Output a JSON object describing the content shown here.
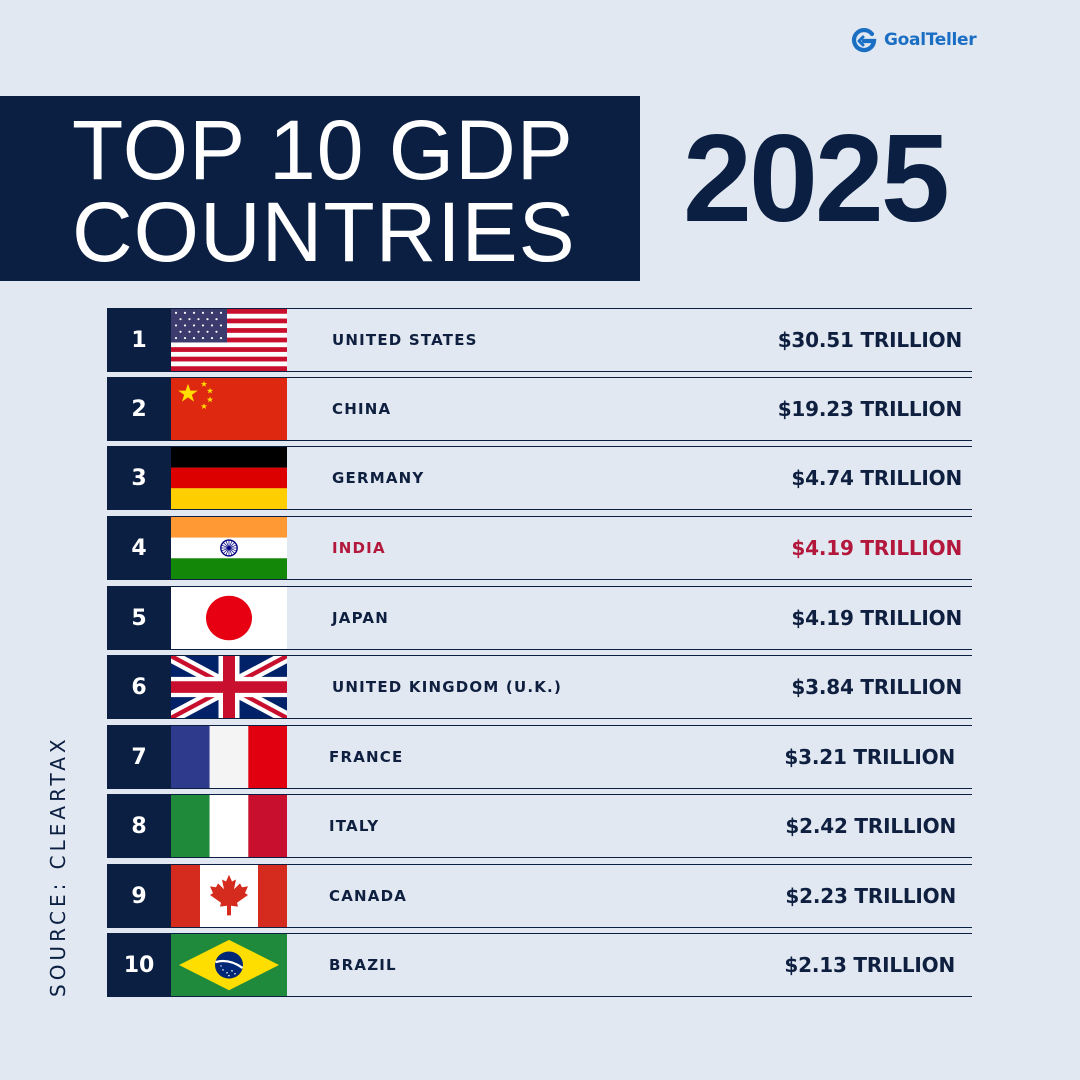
{
  "brand": {
    "name": "GoalTeller",
    "color": "#1a6ec4"
  },
  "title": {
    "line1": "TOP 10 GDP",
    "line2": "COUNTRIES",
    "year": "2025"
  },
  "source": "SOURCE: CLEARTAX",
  "colors": {
    "navy": "#0b1f42",
    "background": "#e1e8f1",
    "highlight": "#b3173b"
  },
  "rows": [
    {
      "rank": "1",
      "country": "UNITED STATES",
      "gdp": "$30.51 TRILLION",
      "flag": "usa-flag-icon"
    },
    {
      "rank": "2",
      "country": "CHINA",
      "gdp": "$19.23 TRILLION",
      "flag": "china-flag-icon"
    },
    {
      "rank": "3",
      "country": "GERMANY",
      "gdp": "$4.74 TRILLION",
      "flag": "germany-flag-icon"
    },
    {
      "rank": "4",
      "country": "INDIA",
      "gdp": "$4.19 TRILLION",
      "flag": "india-flag-icon",
      "highlighted": true
    },
    {
      "rank": "5",
      "country": "JAPAN",
      "gdp": "$4.19 TRILLION",
      "flag": "japan-flag-icon"
    },
    {
      "rank": "6",
      "country": "UNITED KINGDOM (U.K.)",
      "gdp": "$3.84 TRILLION",
      "flag": "uk-flag-icon"
    },
    {
      "rank": "7",
      "country": "FRANCE",
      "gdp": "$3.21 TRILLION",
      "flag": "france-flag-icon"
    },
    {
      "rank": "8",
      "country": "ITALY",
      "gdp": "$2.42 TRILLION",
      "flag": "italy-flag-icon"
    },
    {
      "rank": "9",
      "country": "CANADA",
      "gdp": "$2.23 TRILLION",
      "flag": "canada-flag-icon"
    },
    {
      "rank": "10",
      "country": "BRAZIL",
      "gdp": "$2.13 TRILLION",
      "flag": "brazil-flag-icon"
    }
  ]
}
